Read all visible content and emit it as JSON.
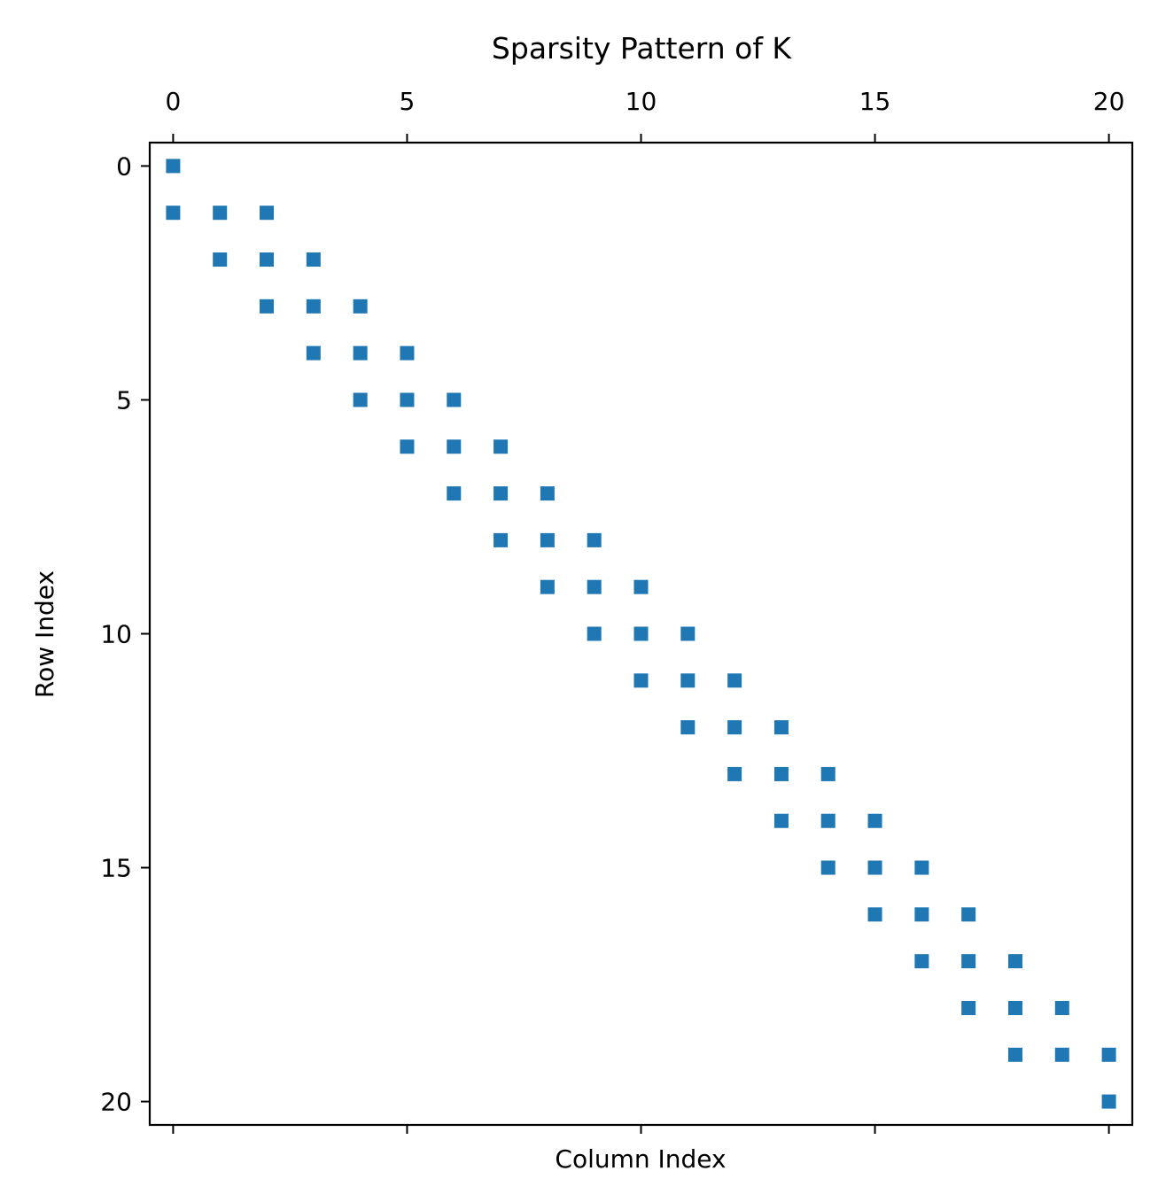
{
  "chart_data": {
    "type": "scatter",
    "title": "Sparsity Pattern of K",
    "xlabel": "Column Index",
    "ylabel": "Row Index",
    "xlim": [
      -0.5,
      20.5
    ],
    "ylim": [
      20.5,
      -0.5
    ],
    "x_axis_position": "top",
    "y_inverted": true,
    "grid": false,
    "legend": "none",
    "marker": "square",
    "color": "#1f77b4",
    "x_ticks": [
      0,
      5,
      10,
      15,
      20
    ],
    "y_ticks": [
      0,
      5,
      10,
      15,
      20
    ],
    "x_tick_labels": [
      "0",
      "5",
      "10",
      "15",
      "20"
    ],
    "y_tick_labels": [
      "0",
      "5",
      "10",
      "15",
      "20"
    ],
    "points": [
      [
        0,
        0
      ],
      [
        0,
        1
      ],
      [
        1,
        1
      ],
      [
        2,
        1
      ],
      [
        1,
        2
      ],
      [
        2,
        2
      ],
      [
        3,
        2
      ],
      [
        2,
        3
      ],
      [
        3,
        3
      ],
      [
        4,
        3
      ],
      [
        3,
        4
      ],
      [
        4,
        4
      ],
      [
        5,
        4
      ],
      [
        4,
        5
      ],
      [
        5,
        5
      ],
      [
        6,
        5
      ],
      [
        5,
        6
      ],
      [
        6,
        6
      ],
      [
        7,
        6
      ],
      [
        6,
        7
      ],
      [
        7,
        7
      ],
      [
        8,
        7
      ],
      [
        7,
        8
      ],
      [
        8,
        8
      ],
      [
        9,
        8
      ],
      [
        8,
        9
      ],
      [
        9,
        9
      ],
      [
        10,
        9
      ],
      [
        9,
        10
      ],
      [
        10,
        10
      ],
      [
        11,
        10
      ],
      [
        10,
        11
      ],
      [
        11,
        11
      ],
      [
        12,
        11
      ],
      [
        11,
        12
      ],
      [
        12,
        12
      ],
      [
        13,
        12
      ],
      [
        12,
        13
      ],
      [
        13,
        13
      ],
      [
        14,
        13
      ],
      [
        13,
        14
      ],
      [
        14,
        14
      ],
      [
        15,
        14
      ],
      [
        14,
        15
      ],
      [
        15,
        15
      ],
      [
        16,
        15
      ],
      [
        15,
        16
      ],
      [
        16,
        16
      ],
      [
        17,
        16
      ],
      [
        16,
        17
      ],
      [
        17,
        17
      ],
      [
        18,
        17
      ],
      [
        17,
        18
      ],
      [
        18,
        18
      ],
      [
        19,
        18
      ],
      [
        18,
        19
      ],
      [
        19,
        19
      ],
      [
        20,
        19
      ],
      [
        20,
        20
      ]
    ]
  }
}
